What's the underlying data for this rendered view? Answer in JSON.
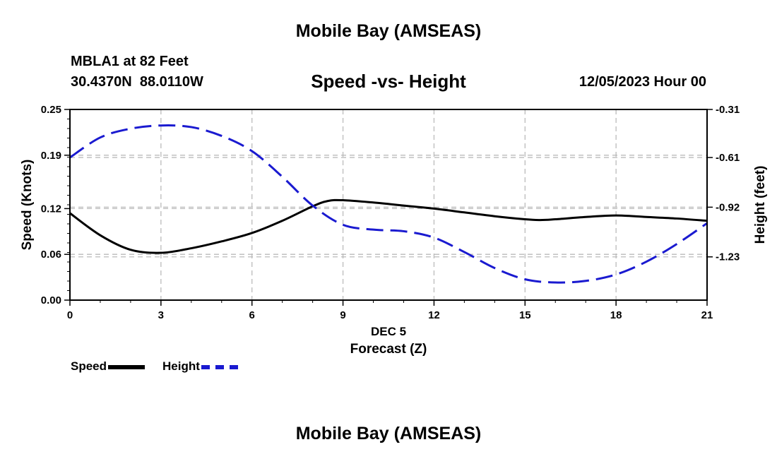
{
  "header": {
    "title": "Mobile Bay (AMSEAS)",
    "station": "MBLA1 at 82 Feet",
    "coordinates": "30.4370N  88.0110W",
    "subtitle": "Speed -vs- Height",
    "datestamp": "12/05/2023 Hour 00"
  },
  "footer": {
    "title": "Mobile Bay (AMSEAS)"
  },
  "legend": {
    "speed_label": "Speed",
    "height_label": "Height"
  },
  "colors": {
    "speed": "#000000",
    "height": "#1a1ad0",
    "grid": "#bbbbbb"
  },
  "chart_data": {
    "type": "line",
    "title": "Speed -vs- Height",
    "xlabel": "Forecast (Z)",
    "xlabel_top": "DEC 5",
    "ylabel": "Speed (Knots)",
    "y2label": "Height (feet)",
    "xlim": [
      0,
      21
    ],
    "ylim": [
      0,
      0.25
    ],
    "y2lim": [
      -1.5,
      -0.31
    ],
    "x_ticks": [
      0,
      3,
      6,
      9,
      12,
      15,
      18,
      21
    ],
    "y_ticks": [
      0.0,
      0.06,
      0.12,
      0.19,
      0.25
    ],
    "y_tick_labels": [
      "0.00",
      "0.06",
      "0.12",
      "0.19",
      "0.25"
    ],
    "y2_ticks": [
      -0.31,
      -0.61,
      -0.92,
      -1.23
    ],
    "y2_tick_labels": [
      "-0.31",
      "-0.61",
      "-0.92",
      "-1.23"
    ],
    "grid": true,
    "legend_position": "bottom-left",
    "series": [
      {
        "name": "Speed",
        "axis": "left",
        "style": "solid",
        "x": [
          0,
          1,
          2,
          3,
          4,
          5,
          6,
          7,
          8,
          8.5,
          9,
          10,
          11,
          12,
          13,
          14,
          15,
          15.5,
          16,
          17,
          18,
          19,
          20,
          21
        ],
        "values": [
          0.114,
          0.085,
          0.066,
          0.062,
          0.068,
          0.077,
          0.088,
          0.104,
          0.123,
          0.13,
          0.131,
          0.128,
          0.124,
          0.12,
          0.115,
          0.11,
          0.106,
          0.105,
          0.106,
          0.109,
          0.111,
          0.109,
          0.107,
          0.104
        ]
      },
      {
        "name": "Height",
        "axis": "right",
        "style": "dashed",
        "x": [
          0,
          1,
          2,
          3,
          4,
          5,
          6,
          7,
          8,
          9,
          10,
          11,
          12,
          13,
          14,
          15,
          16,
          17,
          18,
          19,
          20,
          21
        ],
        "values": [
          -0.61,
          -0.485,
          -0.43,
          -0.41,
          -0.42,
          -0.475,
          -0.57,
          -0.73,
          -0.91,
          -1.03,
          -1.06,
          -1.07,
          -1.11,
          -1.2,
          -1.3,
          -1.37,
          -1.39,
          -1.38,
          -1.34,
          -1.26,
          -1.15,
          -1.02
        ]
      }
    ]
  }
}
